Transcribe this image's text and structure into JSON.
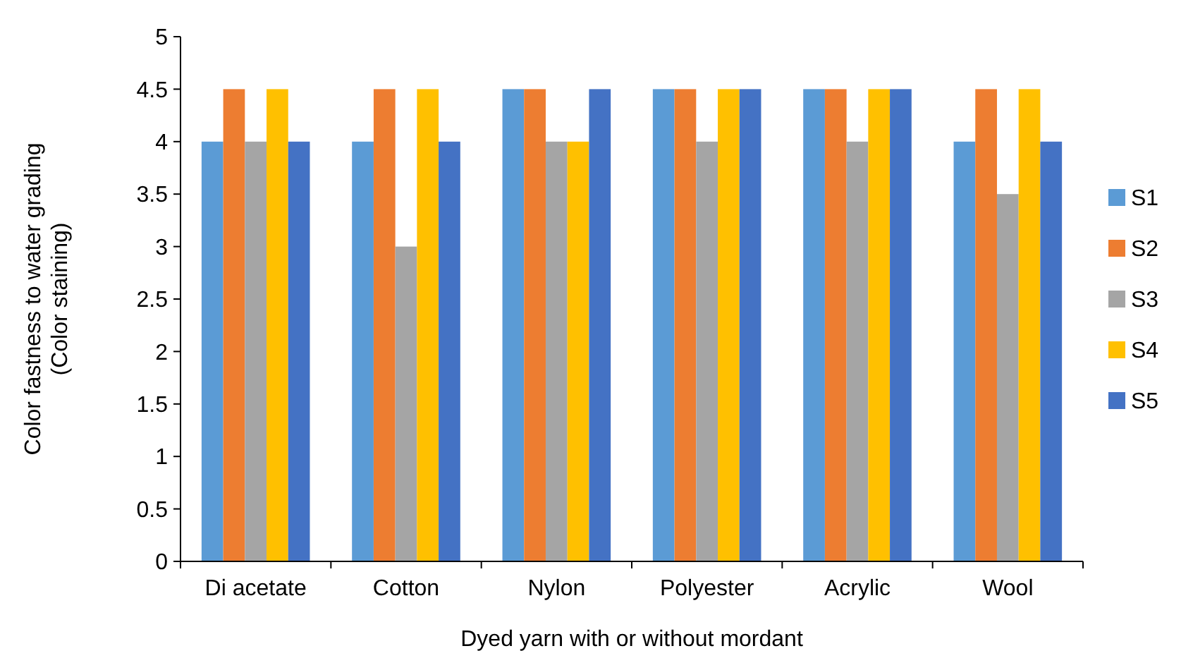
{
  "chart_data": {
    "type": "bar",
    "xlabel": "Dyed yarn with or without mordant",
    "ylabel": "Color fastness to water grading\n(Color staining)",
    "categories": [
      "Di acetate",
      "Cotton",
      "Nylon",
      "Polyester",
      "Acrylic",
      "Wool"
    ],
    "series": [
      {
        "name": "S1",
        "color": "#5b9bd5",
        "values": [
          4,
          4,
          4.5,
          4.5,
          4.5,
          4
        ]
      },
      {
        "name": "S2",
        "color": "#ed7d31",
        "values": [
          4.5,
          4.5,
          4.5,
          4.5,
          4.5,
          4.5
        ]
      },
      {
        "name": "S3",
        "color": "#a5a5a5",
        "values": [
          4,
          3,
          4,
          4,
          4,
          3.5
        ]
      },
      {
        "name": "S4",
        "color": "#ffc000",
        "values": [
          4.5,
          4.5,
          4,
          4.5,
          4.5,
          4.5
        ]
      },
      {
        "name": "S5",
        "color": "#4472c4",
        "values": [
          4,
          4,
          4.5,
          4.5,
          4.5,
          4
        ]
      }
    ],
    "ylim": [
      0,
      5
    ],
    "yticks": [
      0,
      0.5,
      1,
      1.5,
      2,
      2.5,
      3,
      3.5,
      4,
      4.5,
      5
    ],
    "grid": false,
    "legend": "right"
  }
}
